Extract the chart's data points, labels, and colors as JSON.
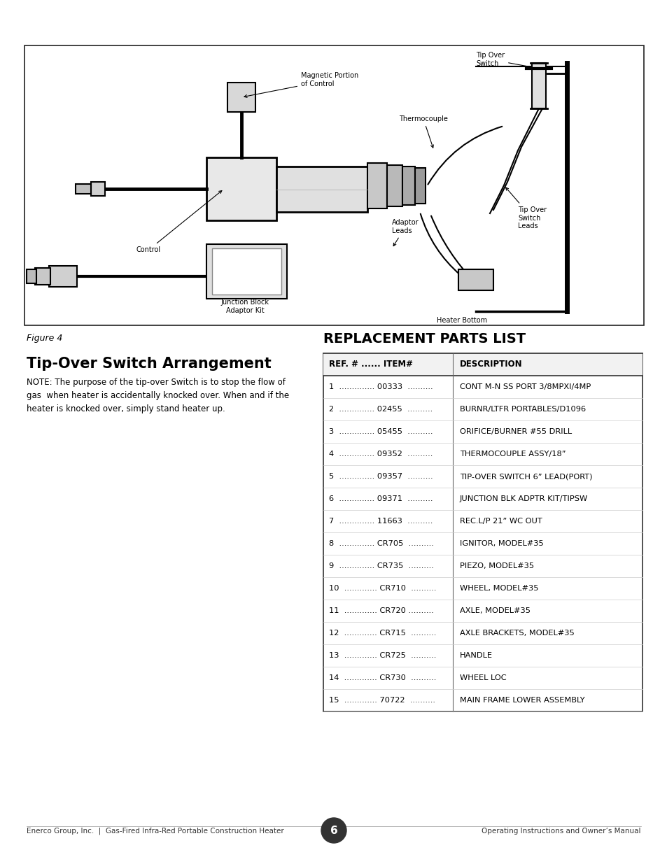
{
  "bg_color": "#ffffff",
  "figure_caption": "Figure 4",
  "section_title_left": "Tip-Over Switch Arrangement",
  "note_text": "NOTE: The purpose of the tip-over Switch is to stop the flow of\ngas  when heater is accidentally knocked over. When and if the\nheater is knocked over, simply stand heater up.",
  "section_title_right": "REPLACEMENT PARTS LIST",
  "table_col1_header": "REF. # ...... ITEM#",
  "table_col2_header": "DESCRIPTION",
  "table_rows": [
    [
      "1  .............. 00333  ..........",
      "CONT M-N SS PORT 3/8MPXI/4MP"
    ],
    [
      "2  .............. 02455  ..........",
      "BURNR/LTFR PORTABLES/D1096"
    ],
    [
      "3  .............. 05455  ..........",
      "ORIFICE/BURNER #55 DRILL"
    ],
    [
      "4  .............. 09352  ..........",
      "THERMOCOUPLE ASSY/18”"
    ],
    [
      "5  .............. 09357  ..........",
      "TIP-OVER SWITCH 6” LEAD(PORT)"
    ],
    [
      "6  .............. 09371  ..........",
      "JUNCTION BLK ADPTR KIT/TIPSW"
    ],
    [
      "7  .............. 11663  ..........",
      "REC.L/P 21” WC OUT"
    ],
    [
      "8  .............. CR705  ..........",
      "IGNITOR, MODEL#35"
    ],
    [
      "9  .............. CR735  ..........",
      "PIEZO, MODEL#35"
    ],
    [
      "10  ............. CR710  ..........",
      "WHEEL, MODEL#35"
    ],
    [
      "11  ............. CR720 ..........",
      "AXLE, MODEL#35"
    ],
    [
      "12  ............. CR715  ..........",
      "AXLE BRACKETS, MODEL#35"
    ],
    [
      "13  ............. CR725  ..........",
      "HANDLE"
    ],
    [
      "14  ............. CR730  ..........",
      "WHEEL LOC"
    ],
    [
      "15  ............. 70722  ..........",
      "MAIN FRAME LOWER ASSEMBLY"
    ]
  ],
  "footer_left": "Enerco Group, Inc.  |  Gas-Fired Infra-Red Portable Construction Heater",
  "footer_right": "Operating Instructions and Owner’s Manual",
  "footer_page": "6"
}
